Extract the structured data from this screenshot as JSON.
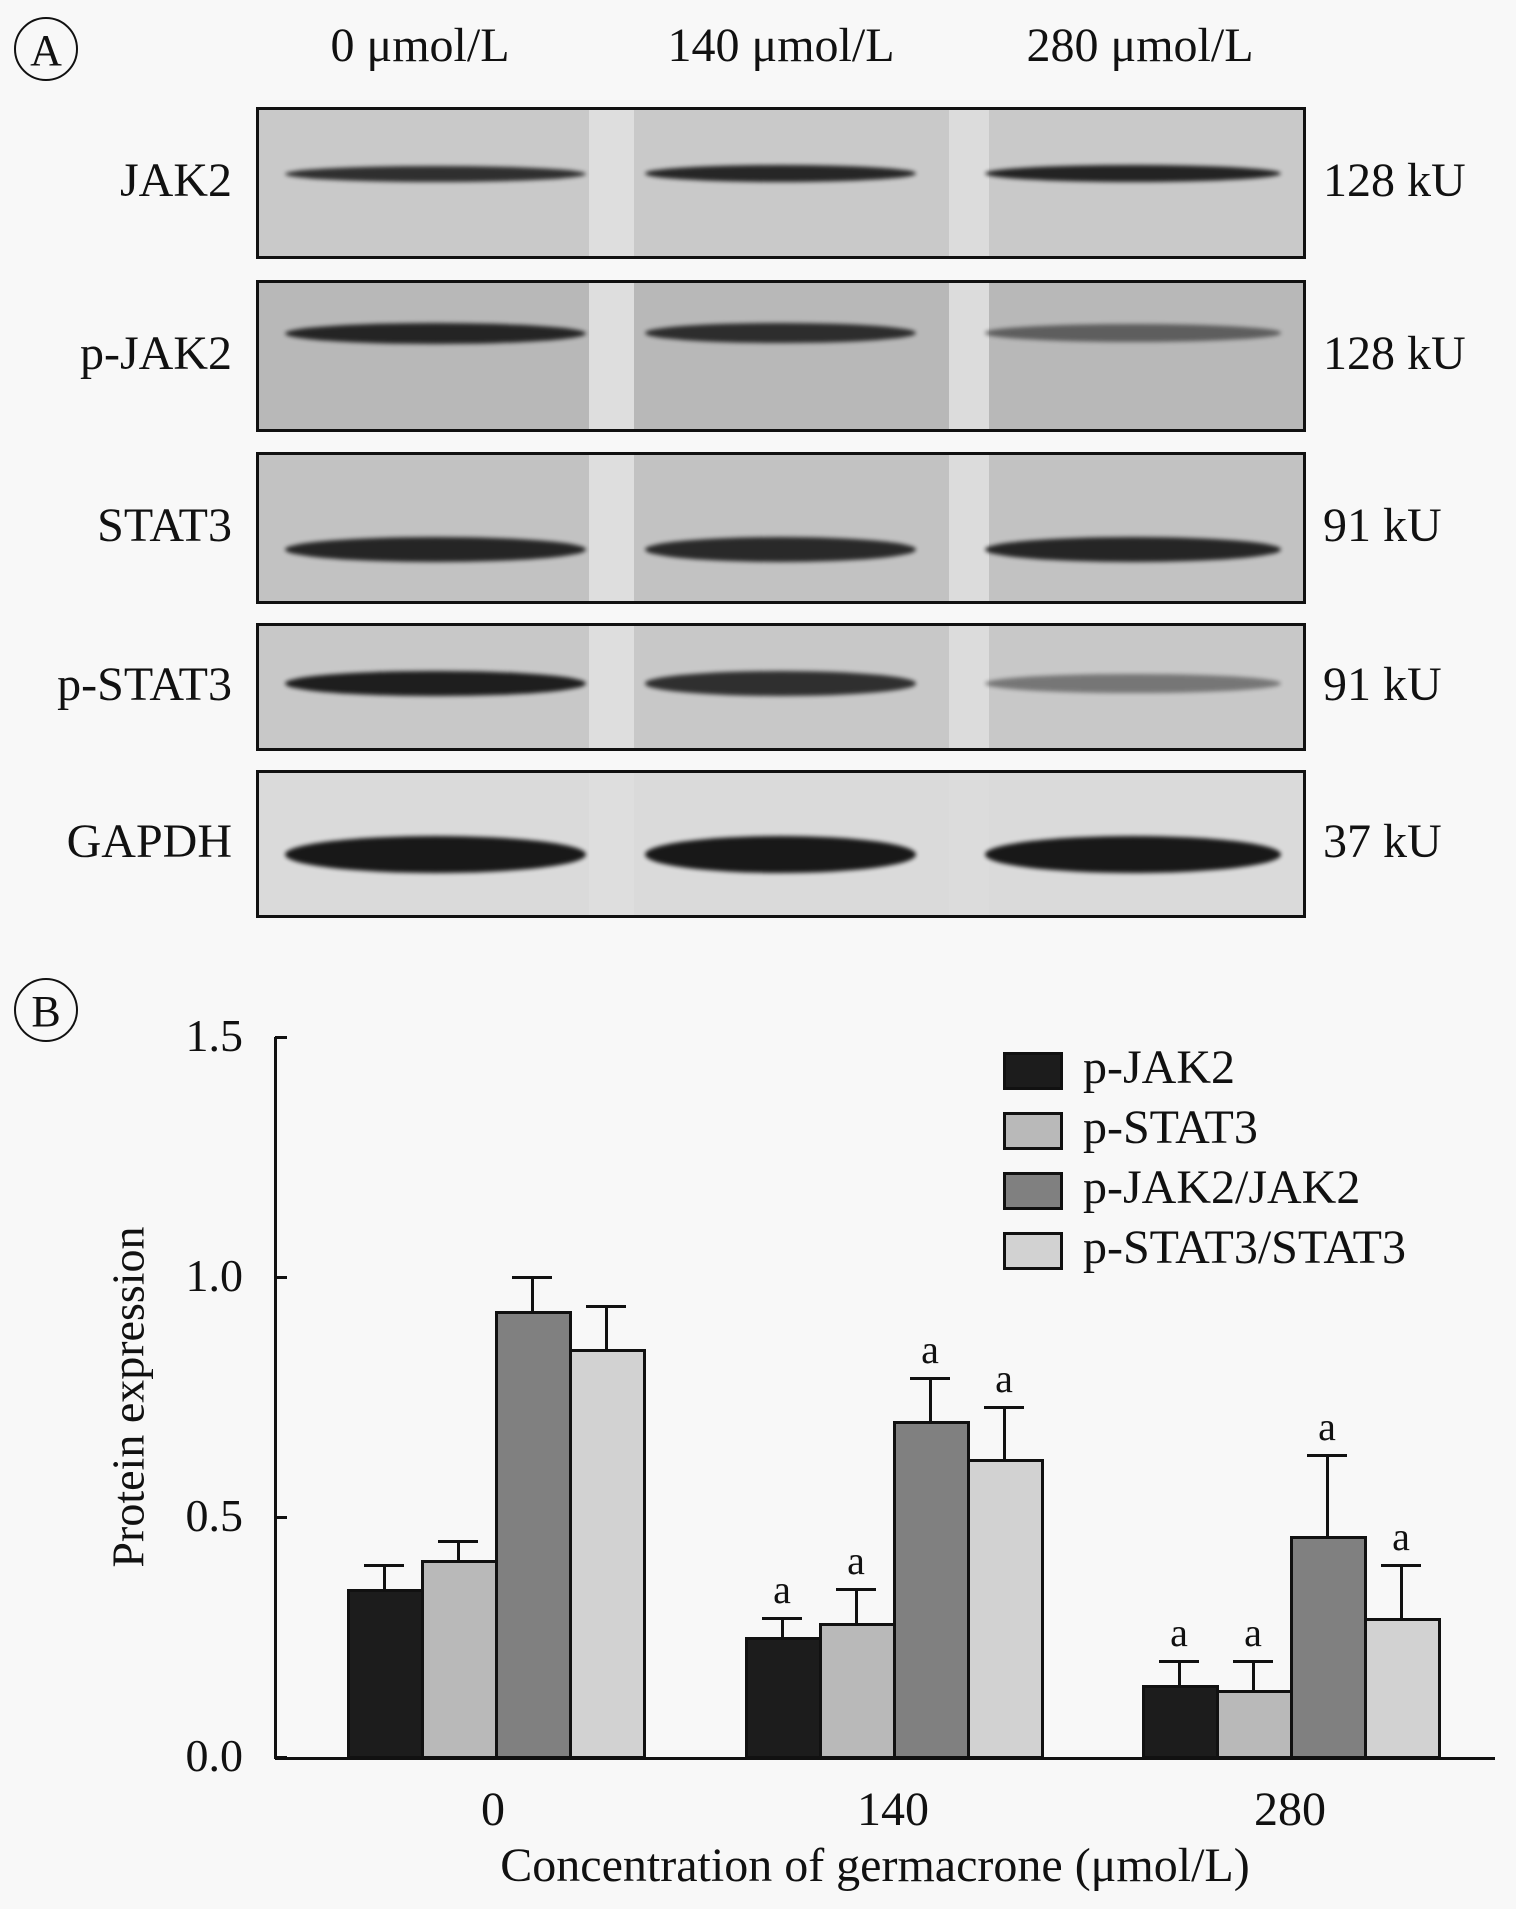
{
  "panel_a": {
    "letter": "A",
    "lanes": [
      "0 μmol/L",
      "140 μmol/L",
      "280 μmol/L"
    ],
    "rows": [
      {
        "protein": "JAK2",
        "mw": "128 kU",
        "band_intensity": [
          0.85,
          0.9,
          0.92
        ]
      },
      {
        "protein": "p-JAK2",
        "mw": "128 kU",
        "band_intensity": [
          0.9,
          0.85,
          0.55
        ]
      },
      {
        "protein": "STAT3",
        "mw": "91 kU",
        "band_intensity": [
          0.9,
          0.88,
          0.9
        ]
      },
      {
        "protein": "p-STAT3",
        "mw": "91 kU",
        "band_intensity": [
          0.95,
          0.85,
          0.45
        ]
      },
      {
        "protein": "GAPDH",
        "mw": "37 kU",
        "band_intensity": [
          0.98,
          0.98,
          0.98
        ]
      }
    ]
  },
  "panel_b": {
    "letter": "B"
  },
  "chart_data": {
    "type": "bar",
    "title": "",
    "xlabel": "Concentration of germacrone (μmol/L)",
    "ylabel": "Protein expression",
    "categories": [
      "0",
      "140",
      "280"
    ],
    "ylim": [
      0.0,
      1.5
    ],
    "yticks": [
      "0.0",
      "0.5",
      "1.0",
      "1.5"
    ],
    "grid": false,
    "legend_position": "upper right",
    "series": [
      {
        "name": "p-JAK2",
        "color": "#1c1c1c",
        "values": [
          0.35,
          0.25,
          0.15
        ],
        "error": [
          0.05,
          0.04,
          0.05
        ],
        "sig": [
          "",
          "a",
          "a"
        ]
      },
      {
        "name": "p-STAT3",
        "color": "#b9b9b9",
        "values": [
          0.41,
          0.28,
          0.14
        ],
        "error": [
          0.04,
          0.07,
          0.06
        ],
        "sig": [
          "",
          "a",
          "a"
        ]
      },
      {
        "name": "p-JAK2/JAK2",
        "color": "#808080",
        "values": [
          0.93,
          0.7,
          0.46
        ],
        "error": [
          0.07,
          0.09,
          0.17
        ],
        "sig": [
          "",
          "a",
          "a"
        ]
      },
      {
        "name": "p-STAT3/STAT3",
        "color": "#d2d2d2",
        "values": [
          0.85,
          0.62,
          0.29
        ],
        "error": [
          0.09,
          0.11,
          0.11
        ],
        "sig": [
          "",
          "a",
          "a"
        ]
      }
    ]
  }
}
